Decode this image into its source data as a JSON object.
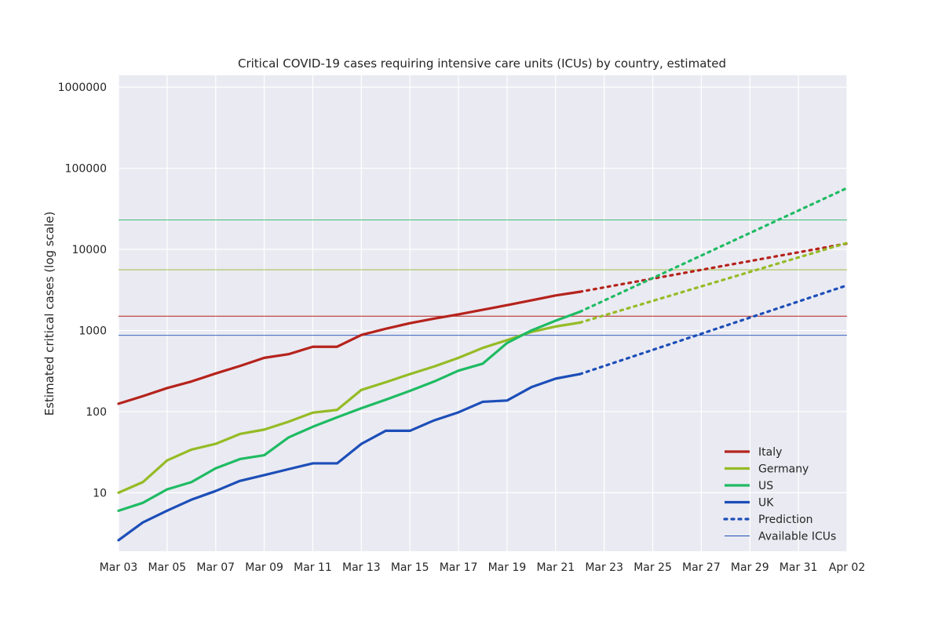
{
  "chart_data": {
    "type": "line",
    "title": "Critical COVID-19 cases requiring intensive care units (ICUs) by country, estimated",
    "xlabel": "",
    "ylabel": "Estimated critical cases (log scale)",
    "yscale": "log",
    "ylim": [
      1.9,
      1400000
    ],
    "xlim": [
      "2020-03-03",
      "2020-04-02"
    ],
    "grid": true,
    "legend_position": "lower-right",
    "x_tick_labels": [
      "Mar 03",
      "Mar 05",
      "Mar 07",
      "Mar 09",
      "Mar 11",
      "Mar 13",
      "Mar 15",
      "Mar 17",
      "Mar 19",
      "Mar 21",
      "Mar 23",
      "Mar 25",
      "Mar 27",
      "Mar 29",
      "Mar 31",
      "Apr 02"
    ],
    "y_tick_labels": [
      "10",
      "100",
      "1000",
      "10000",
      "100000",
      "1000000"
    ],
    "dates": [
      "2020-03-03",
      "2020-03-04",
      "2020-03-05",
      "2020-03-06",
      "2020-03-07",
      "2020-03-08",
      "2020-03-09",
      "2020-03-10",
      "2020-03-11",
      "2020-03-12",
      "2020-03-13",
      "2020-03-14",
      "2020-03-15",
      "2020-03-16",
      "2020-03-17",
      "2020-03-18",
      "2020-03-19",
      "2020-03-20",
      "2020-03-21",
      "2020-03-22"
    ],
    "series": [
      {
        "name": "Italy",
        "color": "#b5231c",
        "values": [
          125,
          155,
          195,
          235,
          295,
          365,
          460,
          510,
          630,
          630,
          880,
          1050,
          1230,
          1400,
          1580,
          1800,
          2050,
          2350,
          2700,
          3000
        ],
        "prediction": {
          "start": "2020-03-22",
          "end": "2020-04-02",
          "start_value": 3000,
          "end_value": 11800
        },
        "available_icus": 1500
      },
      {
        "name": "Germany",
        "color": "#95bb25",
        "values": [
          10,
          13.5,
          25,
          34,
          40,
          53,
          60,
          75,
          97,
          105,
          185,
          230,
          290,
          360,
          460,
          610,
          760,
          960,
          1120,
          1250
        ],
        "prediction": {
          "start": "2020-03-22",
          "end": "2020-04-02",
          "start_value": 1250,
          "end_value": 12000
        },
        "available_icus": 5600
      },
      {
        "name": "US",
        "color": "#1fbb63",
        "values": [
          6,
          7.5,
          11,
          13.5,
          20,
          26,
          29,
          48,
          65,
          85,
          110,
          140,
          180,
          235,
          320,
          390,
          700,
          1000,
          1320,
          1700
        ],
        "prediction": {
          "start": "2020-03-22",
          "end": "2020-04-02",
          "start_value": 1700,
          "end_value": 57000
        },
        "available_icus": 23000
      },
      {
        "name": "UK",
        "color": "#1c4eb8",
        "values": [
          2.6,
          4.3,
          6,
          8.2,
          10.5,
          14,
          16.5,
          19.5,
          23,
          23,
          40,
          58,
          58,
          78,
          98,
          132,
          137,
          200,
          255,
          290
        ],
        "prediction": {
          "start": "2020-03-22",
          "end": "2020-04-02",
          "start_value": 290,
          "end_value": 3600
        },
        "available_icus": 870
      }
    ],
    "legend": [
      {
        "label": "Italy",
        "style": "solid",
        "color": "#b5231c"
      },
      {
        "label": "Germany",
        "style": "solid",
        "color": "#95bb25"
      },
      {
        "label": "US",
        "style": "solid",
        "color": "#1fbb63"
      },
      {
        "label": "UK",
        "style": "solid",
        "color": "#1c4eb8"
      },
      {
        "label": "Prediction",
        "style": "dotted",
        "color": "#1c4eb8"
      },
      {
        "label": "Available ICUs",
        "style": "thin",
        "color": "#1c4eb8"
      }
    ]
  }
}
